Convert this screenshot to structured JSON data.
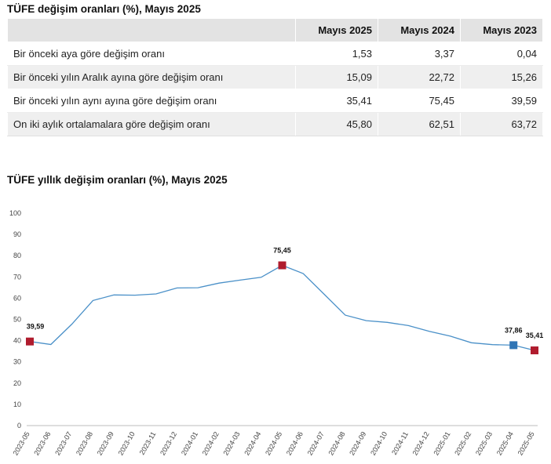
{
  "table": {
    "title": "TÜFE değişim oranları (%), Mayıs 2025",
    "columns": [
      "Mayıs 2025",
      "Mayıs 2024",
      "Mayıs 2023"
    ],
    "rows": [
      {
        "label": "Bir önceki aya göre değişim oranı",
        "values": [
          "1,53",
          "3,37",
          "0,04"
        ]
      },
      {
        "label": "Bir önceki yılın Aralık ayına göre değişim oranı",
        "values": [
          "15,09",
          "22,72",
          "15,26"
        ]
      },
      {
        "label": "Bir önceki yılın aynı ayına göre değişim oranı",
        "values": [
          "35,41",
          "75,45",
          "39,59"
        ]
      },
      {
        "label": "On iki aylık ortalamalara göre değişim oranı",
        "values": [
          "45,80",
          "62,51",
          "63,72"
        ]
      }
    ]
  },
  "chart_data": {
    "type": "line",
    "title": "TÜFE yıllık değişim oranları (%), Mayıs 2025",
    "xlabel": "",
    "ylabel": "",
    "ylim": [
      0,
      100
    ],
    "y_ticks": [
      0,
      10,
      20,
      30,
      40,
      50,
      60,
      70,
      80,
      90,
      100
    ],
    "grid": false,
    "categories": [
      "2023-05",
      "2023-06",
      "2023-07",
      "2023-08",
      "2023-09",
      "2023-10",
      "2023-11",
      "2023-12",
      "2024-01",
      "2024-02",
      "2024-03",
      "2024-04",
      "2024-05",
      "2024-06",
      "2024-07",
      "2024-08",
      "2024-09",
      "2024-10",
      "2024-11",
      "2024-12",
      "2025-01",
      "2025-02",
      "2025-03",
      "2025-04",
      "2025-05"
    ],
    "values": [
      39.59,
      38.2,
      47.8,
      58.9,
      61.5,
      61.4,
      62.0,
      64.8,
      64.9,
      67.1,
      68.5,
      69.8,
      75.45,
      71.6,
      61.8,
      52.0,
      49.4,
      48.6,
      47.1,
      44.4,
      42.1,
      39.0,
      38.1,
      37.86,
      35.41
    ],
    "line_color": "#4a90c8",
    "highlights": [
      {
        "x": "2023-05",
        "label": "39,59",
        "color": "#b01c2e"
      },
      {
        "x": "2024-05",
        "label": "75,45",
        "color": "#b01c2e"
      },
      {
        "x": "2025-04",
        "label": "37,86",
        "color": "#2f75b5"
      },
      {
        "x": "2025-05",
        "label": "35,41",
        "color": "#b01c2e"
      }
    ]
  }
}
